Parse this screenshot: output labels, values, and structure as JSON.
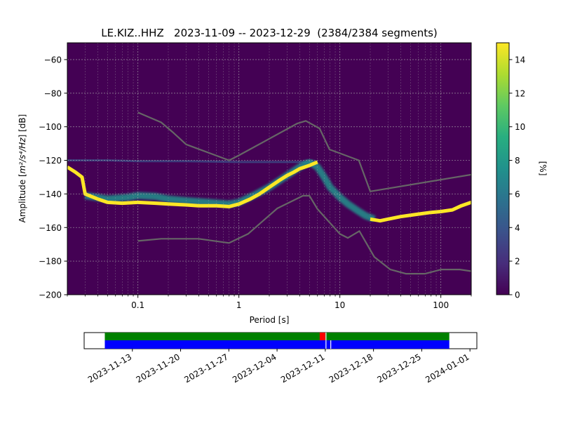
{
  "chart_data": [
    {
      "type": "heatmap",
      "title": "LE.KIZ..HHZ   2023-11-09 -- 2023-12-29  (2384/2384 segments)",
      "xlabel": "Period [s]",
      "ylabel_prefix": "Amplitude [",
      "ylabel_units": "m²/s⁴/Hz",
      "ylabel_suffix": "] [dB]",
      "x_scale": "log",
      "xlim": [
        0.02,
        200
      ],
      "ylim": [
        -200,
        -50
      ],
      "x_ticks": [
        {
          "value": 0.1,
          "label": "0.1"
        },
        {
          "value": 1,
          "label": "1"
        },
        {
          "value": 10,
          "label": "10"
        },
        {
          "value": 100,
          "label": "100"
        }
      ],
      "y_ticks": [
        {
          "value": -60,
          "label": "−60"
        },
        {
          "value": -80,
          "label": "−80"
        },
        {
          "value": -100,
          "label": "−100"
        },
        {
          "value": -120,
          "label": "−120"
        },
        {
          "value": -140,
          "label": "−140"
        },
        {
          "value": -160,
          "label": "−160"
        },
        {
          "value": -180,
          "label": "−180"
        },
        {
          "value": -200,
          "label": "−200"
        }
      ],
      "grid": true,
      "background_color": "#440154",
      "colorbar": {
        "label": "[%]",
        "range": [
          0,
          15
        ],
        "ticks": [
          {
            "value": 0,
            "label": "0"
          },
          {
            "value": 2,
            "label": "2"
          },
          {
            "value": 4,
            "label": "4"
          },
          {
            "value": 6,
            "label": "6"
          },
          {
            "value": 8,
            "label": "8"
          },
          {
            "value": 10,
            "label": "10"
          },
          {
            "value": 12,
            "label": "12"
          },
          {
            "value": 14,
            "label": "14"
          }
        ],
        "colormap": [
          "#440154",
          "#472d7b",
          "#3b528b",
          "#2c728e",
          "#21918c",
          "#28ae80",
          "#5ec962",
          "#addc30",
          "#fde725"
        ]
      },
      "psd_mode": {
        "color": "#fde725",
        "points": [
          [
            0.02,
            -124
          ],
          [
            0.024,
            -127
          ],
          [
            0.028,
            -130
          ],
          [
            0.03,
            -140
          ],
          [
            0.04,
            -143
          ],
          [
            0.05,
            -145
          ],
          [
            0.07,
            -145.5
          ],
          [
            0.1,
            -145
          ],
          [
            0.15,
            -145.5
          ],
          [
            0.2,
            -146
          ],
          [
            0.3,
            -146.5
          ],
          [
            0.4,
            -147
          ],
          [
            0.6,
            -147
          ],
          [
            0.8,
            -147.5
          ],
          [
            1.0,
            -146
          ],
          [
            1.3,
            -143
          ],
          [
            1.6,
            -140
          ],
          [
            2.0,
            -136
          ],
          [
            2.5,
            -132
          ],
          [
            3.0,
            -129
          ],
          [
            3.5,
            -127
          ],
          [
            4.0,
            -125
          ],
          [
            5.0,
            -123
          ],
          [
            6.0,
            -121
          ]
        ]
      },
      "psd_mode_tail": {
        "color": "#fde725",
        "points": [
          [
            20,
            -155
          ],
          [
            25,
            -156
          ],
          [
            30,
            -155
          ],
          [
            40,
            -153.5
          ],
          [
            60,
            -152
          ],
          [
            80,
            -151
          ],
          [
            100,
            -150.5
          ],
          [
            130,
            -149.5
          ],
          [
            160,
            -147
          ],
          [
            200,
            -145
          ]
        ]
      },
      "psd_spread": {
        "color": "#21918c",
        "points": [
          [
            0.03,
            -141
          ],
          [
            0.05,
            -143
          ],
          [
            0.08,
            -142
          ],
          [
            0.1,
            -141
          ],
          [
            0.15,
            -141.5
          ],
          [
            0.2,
            -143
          ],
          [
            0.3,
            -144
          ],
          [
            0.5,
            -145
          ],
          [
            0.8,
            -146
          ],
          [
            1.0,
            -145
          ],
          [
            1.5,
            -140
          ],
          [
            2.0,
            -136
          ],
          [
            3.0,
            -129
          ],
          [
            4.0,
            -124
          ],
          [
            5.0,
            -121
          ],
          [
            6.0,
            -124
          ],
          [
            7.0,
            -130
          ],
          [
            8.0,
            -136
          ],
          [
            10,
            -142
          ],
          [
            12,
            -146
          ],
          [
            15,
            -150
          ],
          [
            18,
            -153
          ],
          [
            22,
            -155
          ]
        ]
      },
      "psd_faint": {
        "color": "#3b528b",
        "points": [
          [
            0.02,
            -120
          ],
          [
            0.05,
            -120
          ],
          [
            0.1,
            -120.5
          ],
          [
            0.3,
            -120.5
          ],
          [
            1.0,
            -121
          ],
          [
            3.0,
            -121
          ],
          [
            6.0,
            -121
          ]
        ]
      },
      "noise_models": [
        {
          "color": "#666666",
          "points": [
            [
              0.1,
              -91.5
            ],
            [
              0.17,
              -97.4
            ],
            [
              0.22,
              -103.1
            ],
            [
              0.3,
              -110.5
            ],
            [
              0.8,
              -120
            ],
            [
              1.0,
              -117
            ],
            [
              3.8,
              -98
            ],
            [
              4.6,
              -96.5
            ],
            [
              6.3,
              -101
            ],
            [
              7.9,
              -113.5
            ],
            [
              15.4,
              -120
            ],
            [
              20,
              -138.5
            ],
            [
              354.8,
              -126
            ]
          ]
        },
        {
          "color": "#666666",
          "points": [
            [
              0.1,
              -168
            ],
            [
              0.17,
              -166.7
            ],
            [
              0.4,
              -166.7
            ],
            [
              0.8,
              -169.2
            ],
            [
              1.24,
              -163.7
            ],
            [
              2.4,
              -148.6
            ],
            [
              4.3,
              -141.1
            ],
            [
              5.0,
              -141.1
            ],
            [
              6.0,
              -149
            ],
            [
              10,
              -163.8
            ],
            [
              12,
              -166.2
            ],
            [
              15.6,
              -162.1
            ],
            [
              21.9,
              -177.5
            ],
            [
              31.6,
              -185
            ],
            [
              45,
              -187.5
            ],
            [
              70,
              -187.5
            ],
            [
              101,
              -185
            ],
            [
              154,
              -185
            ],
            [
              200,
              -186
            ]
          ]
        }
      ],
      "timeline": {
        "xlim": [
          "2023-11-06",
          "2024-01-02"
        ],
        "data_start": "2023-11-09",
        "data_end": "2023-12-29",
        "top_color": "#008000",
        "bottom_color": "#0000ff",
        "gap_color": "#ff0000",
        "gaps": [
          "2023-12-11",
          "2023-12-12"
        ],
        "tick_dates": [
          "2023-11-13",
          "2023-11-20",
          "2023-11-27",
          "2023-12-04",
          "2023-12-11",
          "2023-12-18",
          "2023-12-25",
          "2024-01-01"
        ]
      }
    }
  ]
}
